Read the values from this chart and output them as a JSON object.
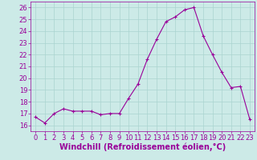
{
  "x": [
    0,
    1,
    2,
    3,
    4,
    5,
    6,
    7,
    8,
    9,
    10,
    11,
    12,
    13,
    14,
    15,
    16,
    17,
    18,
    19,
    20,
    21,
    22,
    23
  ],
  "y": [
    16.7,
    16.2,
    17.0,
    17.4,
    17.2,
    17.2,
    17.2,
    16.9,
    17.0,
    17.0,
    18.3,
    19.5,
    21.6,
    23.3,
    24.8,
    25.2,
    25.8,
    26.0,
    23.6,
    22.0,
    20.5,
    19.2,
    19.3,
    16.5
  ],
  "line_color": "#990099",
  "marker": "+",
  "marker_size": 3,
  "marker_lw": 0.8,
  "bg_color": "#cceae7",
  "grid_color": "#aad4d0",
  "xlabel": "Windchill (Refroidissement éolien,°C)",
  "xlabel_color": "#990099",
  "xlabel_fontsize": 7,
  "tick_color": "#990099",
  "tick_fontsize": 6,
  "ylim": [
    15.5,
    26.5
  ],
  "xlim": [
    -0.5,
    23.5
  ],
  "yticks": [
    16,
    17,
    18,
    19,
    20,
    21,
    22,
    23,
    24,
    25,
    26
  ],
  "xticks": [
    0,
    1,
    2,
    3,
    4,
    5,
    6,
    7,
    8,
    9,
    10,
    11,
    12,
    13,
    14,
    15,
    16,
    17,
    18,
    19,
    20,
    21,
    22,
    23
  ]
}
